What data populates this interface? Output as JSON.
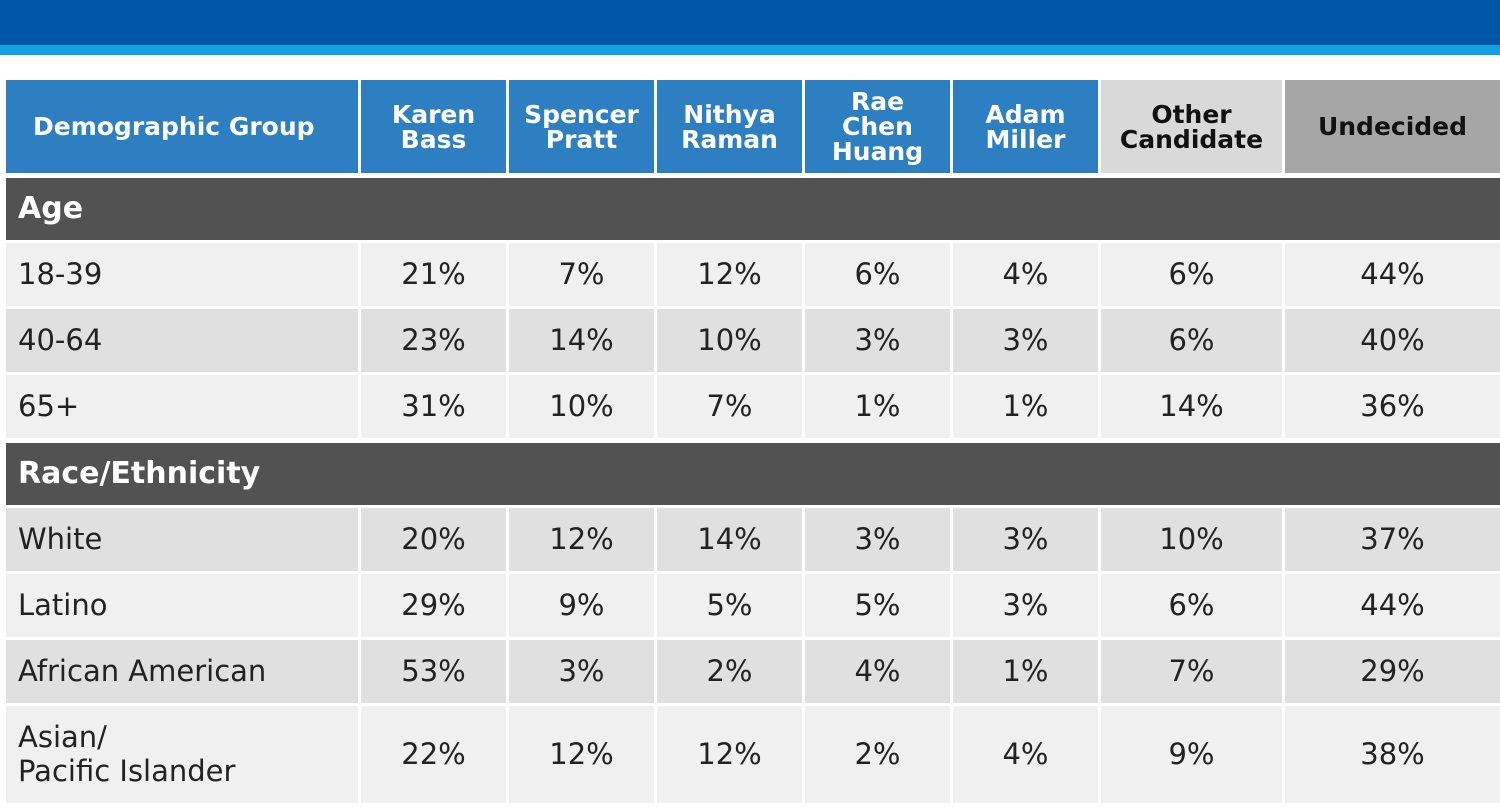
{
  "table": {
    "columns": [
      "Demographic Group",
      "Karen\nBass",
      "Spencer\nPratt",
      "Nithya\nRaman",
      "Rae\nChen\nHuang",
      "Adam\nMiller",
      "Other\nCandidate",
      "Undecided"
    ],
    "sections": [
      {
        "title": "Age",
        "rows": [
          {
            "label": "18-39",
            "values": [
              "21%",
              "7%",
              "12%",
              "6%",
              "4%",
              "6%",
              "44%"
            ]
          },
          {
            "label": "40-64",
            "values": [
              "23%",
              "14%",
              "10%",
              "3%",
              "3%",
              "6%",
              "40%"
            ]
          },
          {
            "label": "65+",
            "values": [
              "31%",
              "10%",
              "7%",
              "1%",
              "1%",
              "14%",
              "36%"
            ]
          }
        ]
      },
      {
        "title": "Race/Ethnicity",
        "rows": [
          {
            "label": "White",
            "values": [
              "20%",
              "12%",
              "14%",
              "3%",
              "3%",
              "10%",
              "37%"
            ]
          },
          {
            "label": "Latino",
            "values": [
              "29%",
              "9%",
              "5%",
              "5%",
              "3%",
              "6%",
              "44%"
            ]
          },
          {
            "label": "African American",
            "values": [
              "53%",
              "3%",
              "2%",
              "4%",
              "1%",
              "7%",
              "29%"
            ]
          },
          {
            "label": "Asian/\nPacific Islander",
            "values": [
              "22%",
              "12%",
              "12%",
              "2%",
              "4%",
              "9%",
              "38%"
            ]
          }
        ]
      }
    ]
  }
}
